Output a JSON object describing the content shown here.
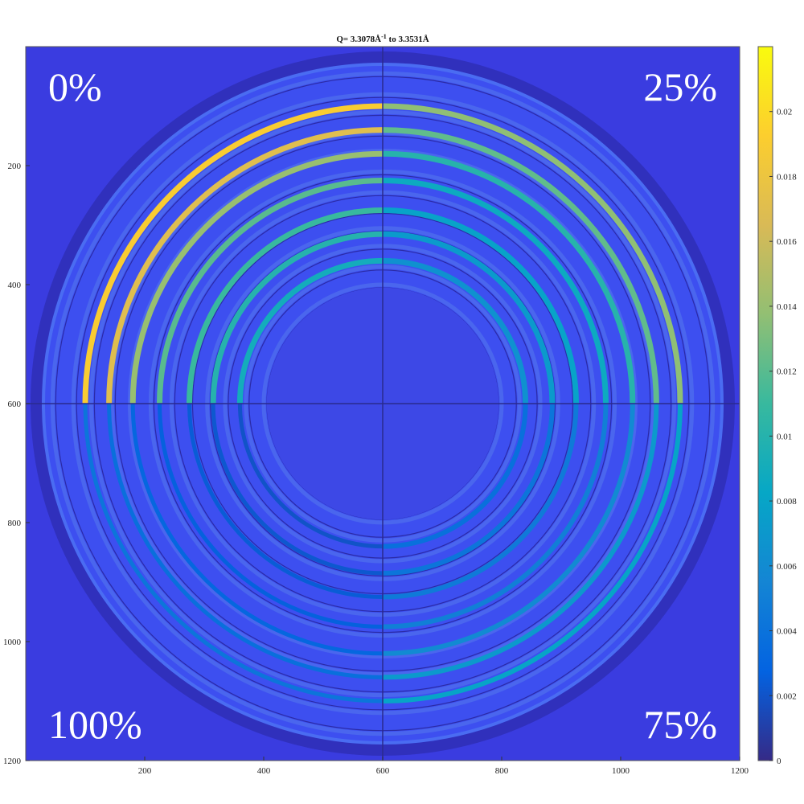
{
  "chart_data": {
    "type": "heatmap",
    "title": {
      "prefix": "Q= 3.3078Å",
      "superscript": "-1",
      "suffix": "  to 3.3531Å"
    },
    "xlabel": "",
    "ylabel": "",
    "xlim": [
      0,
      1200
    ],
    "ylim": [
      0,
      1200
    ],
    "y_axis_direction": "down",
    "x_ticks": [
      200,
      400,
      600,
      800,
      1000,
      1200
    ],
    "y_ticks": [
      200,
      400,
      600,
      800,
      1000,
      1200
    ],
    "colorbar": {
      "range": [
        0,
        0.022
      ],
      "ticks": [
        0,
        0.002,
        0.004,
        0.006,
        0.008,
        0.01,
        0.012,
        0.014,
        0.016,
        0.018,
        0.02
      ],
      "tick_labels": [
        "0",
        "0.002",
        "0.004",
        "0.006",
        "0.008",
        "0.01",
        "0.012",
        "0.014",
        "0.016",
        "0.018",
        "0.02"
      ],
      "colormap": "parula"
    },
    "quadrant_labels": {
      "top_left": "0%",
      "top_right": "25%",
      "bottom_right": "75%",
      "bottom_left": "100%"
    },
    "quadrant_divider_at": [
      600,
      600
    ],
    "center": [
      600,
      600
    ],
    "bright_arc_radii": [
      500,
      460,
      420,
      375,
      325,
      285,
      240
    ],
    "bright_arc_values": [
      0.019,
      0.017,
      0.014,
      0.012,
      0.011,
      0.01,
      0.009
    ],
    "faint_ring_radii": [
      555,
      520,
      490,
      455,
      425,
      390,
      355,
      325,
      295,
      265,
      230,
      200
    ],
    "outer_disk_radius": 600,
    "inner_disk_radius": 195,
    "background_value": 0.0025
  },
  "colors": {
    "background": "#3a3ce0",
    "disk": "#3d4ff0",
    "dark_ring": "#2b2ba6",
    "divider": "#2a2a8e",
    "colormap": [
      "#352a87",
      "#0363e1",
      "#1485d4",
      "#06a7c6",
      "#38b99e",
      "#92bf73",
      "#d9ba56",
      "#fcce2e",
      "#f9fb0e"
    ]
  }
}
